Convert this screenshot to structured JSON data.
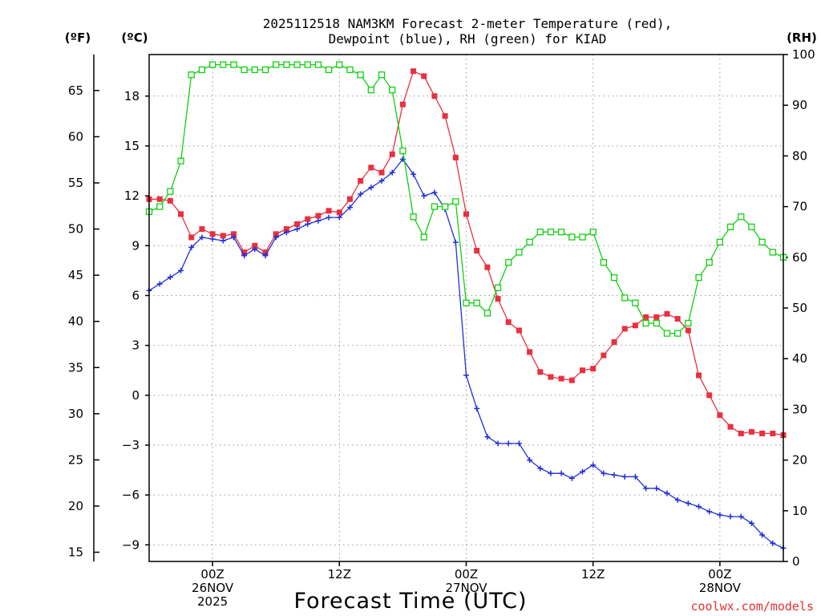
{
  "chart_data": {
    "type": "line",
    "title_line1": "2025112518 NAM3KM Forecast 2-meter Temperature (red),",
    "title_line2": "Dewpoint (blue), RH (green) for KIAD",
    "xlabel": "Forecast Time (UTC)",
    "credit": "coolwx.com/models",
    "credit_color": "#e83030",
    "units": {
      "fahrenheit": "(ºF)",
      "celsius": "(ºC)",
      "rh": "(RH)"
    },
    "x_hours_range": [
      -6,
      54
    ],
    "x_ticks": [
      {
        "hour": 0,
        "lines": [
          "00Z",
          "26NOV",
          "2025"
        ]
      },
      {
        "hour": 12,
        "lines": [
          "12Z"
        ]
      },
      {
        "hour": 24,
        "lines": [
          "00Z",
          "27NOV"
        ]
      },
      {
        "hour": 36,
        "lines": [
          "12Z"
        ]
      },
      {
        "hour": 48,
        "lines": [
          "00Z",
          "28NOV"
        ]
      }
    ],
    "celsius_axis": {
      "min": -10.0,
      "max": 20.5,
      "ticks": [
        -9,
        -6,
        -3,
        0,
        3,
        6,
        9,
        12,
        15,
        18
      ]
    },
    "fahrenheit_ticks": [
      15,
      20,
      25,
      30,
      35,
      40,
      45,
      50,
      55,
      60,
      65
    ],
    "rh_axis": {
      "min": 0,
      "max": 100,
      "ticks": [
        0,
        10,
        20,
        30,
        40,
        50,
        60,
        70,
        80,
        90,
        100
      ]
    },
    "series": [
      {
        "name": "Temperature",
        "color": "#e83040",
        "axis": "celsius",
        "marker": "filled-square",
        "hours": [
          -6,
          -5,
          -4,
          -3,
          -2,
          -1,
          0,
          1,
          2,
          3,
          4,
          5,
          6,
          7,
          8,
          9,
          10,
          11,
          12,
          13,
          14,
          15,
          16,
          17,
          18,
          19,
          20,
          21,
          22,
          23,
          24,
          25,
          26,
          27,
          28,
          29,
          30,
          31,
          32,
          33,
          34,
          35,
          36,
          37,
          38,
          39,
          40,
          41,
          42,
          43,
          44,
          45,
          46,
          47,
          48,
          49,
          50,
          51,
          52,
          53,
          54
        ],
        "values": [
          11.8,
          11.8,
          11.7,
          10.9,
          9.5,
          10.0,
          9.7,
          9.6,
          9.7,
          8.6,
          9.0,
          8.6,
          9.7,
          10.0,
          10.3,
          10.6,
          10.8,
          11.1,
          11.0,
          11.8,
          12.9,
          13.7,
          13.4,
          14.5,
          17.5,
          19.5,
          19.2,
          18.0,
          16.8,
          14.3,
          10.9,
          8.7,
          7.7,
          5.8,
          4.4,
          3.9,
          2.6,
          1.4,
          1.1,
          1.0,
          0.9,
          1.5,
          1.6,
          2.4,
          3.2,
          4.0,
          4.2,
          4.7,
          4.7,
          4.9,
          4.6,
          3.9,
          1.2,
          0.0,
          -1.2,
          -1.9,
          -2.3,
          -2.2,
          -2.3,
          -2.3,
          -2.4
        ]
      },
      {
        "name": "Dewpoint",
        "color": "#2030d8",
        "axis": "celsius",
        "marker": "plus",
        "hours": [
          -6,
          -5,
          -4,
          -3,
          -2,
          -1,
          0,
          1,
          2,
          3,
          4,
          5,
          6,
          7,
          8,
          9,
          10,
          11,
          12,
          13,
          14,
          15,
          16,
          17,
          18,
          19,
          20,
          21,
          22,
          23,
          24,
          25,
          26,
          27,
          28,
          29,
          30,
          31,
          32,
          33,
          34,
          35,
          36,
          37,
          38,
          39,
          40,
          41,
          42,
          43,
          44,
          45,
          46,
          47,
          48,
          49,
          50,
          51,
          52,
          53,
          54
        ],
        "values": [
          6.3,
          6.7,
          7.1,
          7.5,
          8.9,
          9.5,
          9.4,
          9.3,
          9.5,
          8.4,
          8.8,
          8.4,
          9.5,
          9.8,
          10.0,
          10.3,
          10.5,
          10.7,
          10.7,
          11.3,
          12.1,
          12.5,
          12.9,
          13.4,
          14.2,
          13.3,
          12.0,
          12.2,
          11.2,
          9.2,
          1.2,
          -0.8,
          -2.5,
          -2.9,
          -2.9,
          -2.9,
          -3.9,
          -4.4,
          -4.7,
          -4.7,
          -5.0,
          -4.6,
          -4.2,
          -4.7,
          -4.8,
          -4.9,
          -4.9,
          -5.6,
          -5.6,
          -5.9,
          -6.3,
          -6.5,
          -6.7,
          -7.0,
          -7.2,
          -7.3,
          -7.3,
          -7.7,
          -8.4,
          -8.9,
          -9.2
        ]
      },
      {
        "name": "RH",
        "color": "#10d010",
        "axis": "rh",
        "marker": "open-square",
        "hours": [
          -6,
          -5,
          -4,
          -3,
          -2,
          -1,
          0,
          1,
          2,
          3,
          4,
          5,
          6,
          7,
          8,
          9,
          10,
          11,
          12,
          13,
          14,
          15,
          16,
          17,
          18,
          19,
          20,
          21,
          22,
          23,
          24,
          25,
          26,
          27,
          28,
          29,
          30,
          31,
          32,
          33,
          34,
          35,
          36,
          37,
          38,
          39,
          40,
          41,
          42,
          43,
          44,
          45,
          46,
          47,
          48,
          49,
          50,
          51,
          52,
          53,
          54
        ],
        "values": [
          69,
          70,
          73,
          79,
          96,
          97,
          98,
          98,
          98,
          97,
          97,
          97,
          98,
          98,
          98,
          98,
          98,
          97,
          98,
          97,
          96,
          93,
          96,
          93,
          81,
          68,
          64,
          70,
          70,
          71,
          51,
          51,
          49,
          54,
          59,
          61,
          63,
          65,
          65,
          65,
          64,
          64,
          65,
          59,
          56,
          52,
          51,
          47,
          47,
          45,
          45,
          47,
          56,
          59,
          63,
          66,
          68,
          66,
          63,
          61,
          60
        ]
      }
    ]
  }
}
